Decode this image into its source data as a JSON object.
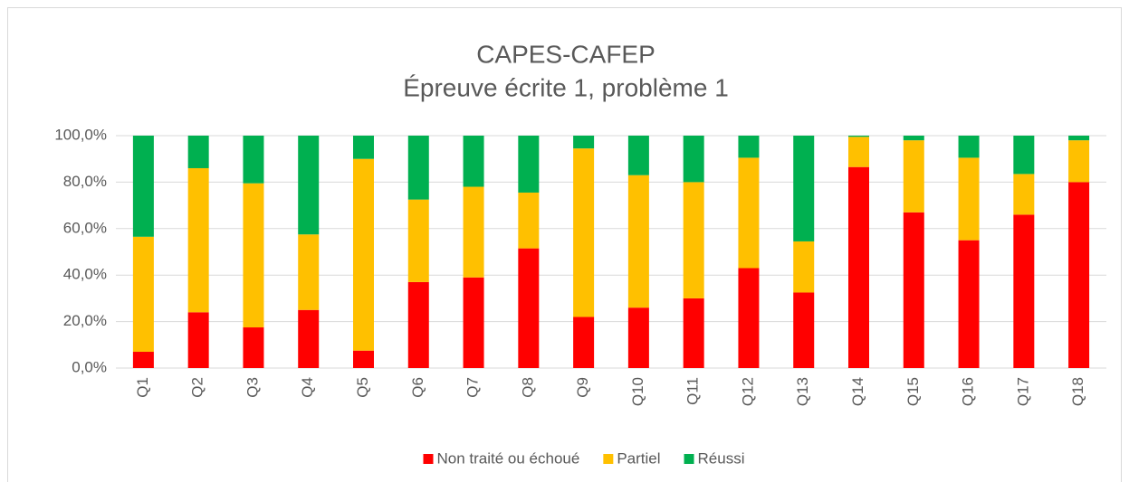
{
  "chart_data": {
    "type": "stacked_bar",
    "title": "CAPES-CAFEP",
    "subtitle": "Épreuve écrite 1, problème 1",
    "categories": [
      "Q1",
      "Q2",
      "Q3",
      "Q4",
      "Q5",
      "Q6",
      "Q7",
      "Q8",
      "Q9",
      "Q10",
      "Q11",
      "Q12",
      "Q13",
      "Q14",
      "Q15",
      "Q16",
      "Q17",
      "Q18"
    ],
    "series": [
      {
        "name": "Non traité ou échoué",
        "color": "#ff0000",
        "values": [
          7,
          24,
          17.5,
          25,
          7.5,
          37,
          39,
          51.5,
          22,
          26,
          30,
          43,
          32.5,
          86.5,
          67,
          55,
          66,
          80
        ]
      },
      {
        "name": "Partiel",
        "color": "#ffc000",
        "values": [
          49.5,
          62,
          62,
          32.5,
          82.5,
          35.5,
          39,
          24,
          72.5,
          57,
          50,
          47.5,
          22,
          13,
          31,
          35.5,
          17.5,
          18
        ]
      },
      {
        "name": "Réussi",
        "color": "#00b050",
        "values": [
          43.5,
          14,
          20.5,
          42.5,
          10,
          27.5,
          22,
          24.5,
          5.5,
          17,
          20,
          9.5,
          45.5,
          0.5,
          2,
          9.5,
          16.5,
          2
        ]
      }
    ],
    "ylim": [
      0,
      100
    ],
    "yticks": [
      {
        "value": 0,
        "label": "0,0%"
      },
      {
        "value": 20,
        "label": "20,0%"
      },
      {
        "value": 40,
        "label": "40,0%"
      },
      {
        "value": 60,
        "label": "60,0%"
      },
      {
        "value": 80,
        "label": "80,0%"
      },
      {
        "value": 100,
        "label": "100,0%"
      }
    ],
    "grid": true,
    "legend": "bottom"
  }
}
